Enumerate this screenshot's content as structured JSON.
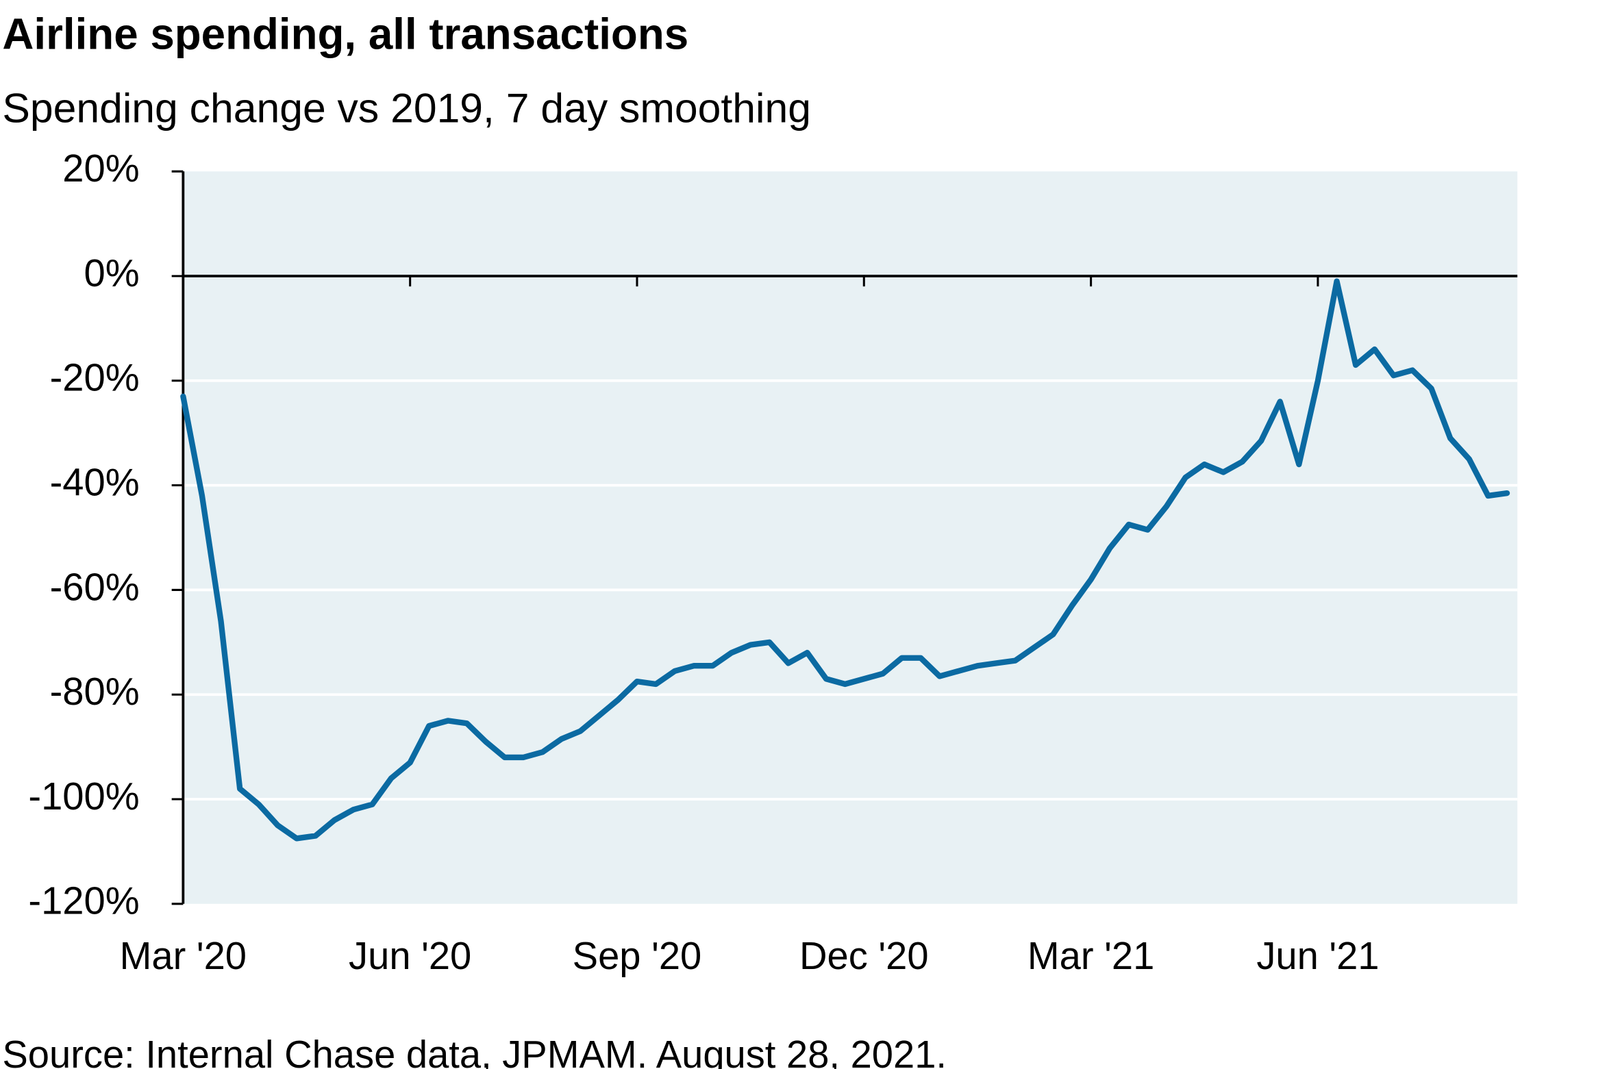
{
  "chart_data": {
    "type": "line",
    "title": "Airline spending, all transactions",
    "subtitle": "Spending change vs 2019, 7 day smoothing",
    "source": "Source: Internal Chase data, JPMAM. August 28, 2021.",
    "categories": [
      "Mar '20",
      null,
      null,
      null,
      null,
      null,
      null,
      null,
      null,
      null,
      null,
      null,
      "Jun '20",
      null,
      null,
      null,
      null,
      null,
      null,
      null,
      null,
      null,
      null,
      null,
      "Sep '20",
      null,
      null,
      null,
      null,
      null,
      null,
      null,
      null,
      null,
      null,
      null,
      "Dec '20",
      null,
      null,
      null,
      null,
      null,
      null,
      null,
      null,
      null,
      null,
      null,
      "Mar '21",
      null,
      null,
      null,
      null,
      null,
      null,
      null,
      null,
      null,
      null,
      null,
      "Jun '21",
      null,
      null,
      null,
      null,
      null,
      null,
      null,
      null,
      null,
      null
    ],
    "series": [
      {
        "name": "Airline spending",
        "color": "#0b6aa2",
        "values": [
          -23,
          -42,
          -66,
          -98,
          -101,
          -105,
          -107.5,
          -107,
          -104,
          -102,
          -101,
          -96,
          -93,
          -86,
          -85,
          -85.5,
          -89,
          -92,
          -92,
          -91,
          -88.5,
          -87,
          -84,
          -81,
          -77.5,
          -78,
          -75.5,
          -74.5,
          -74.5,
          -72,
          -70.5,
          -70,
          -74,
          -72,
          -77,
          -78,
          -77,
          -76,
          -73,
          -73,
          -76.5,
          -75.5,
          -74.5,
          -74,
          -73.5,
          -71,
          -68.5,
          -63,
          -58,
          -52,
          -47.5,
          -48.5,
          -44,
          -38.5,
          -36,
          -37.5,
          -35.5,
          -31.5,
          -24,
          -36,
          -20,
          -1,
          -17,
          -14,
          -19,
          -18,
          -21.5,
          -31,
          -35,
          -42,
          -41.5
        ]
      }
    ],
    "ylim": [
      -120,
      20
    ],
    "yticks": [
      {
        "value": -120,
        "label": "-120%"
      },
      {
        "value": -100,
        "label": "-100%"
      },
      {
        "value": -80,
        "label": "-80%"
      },
      {
        "value": -60,
        "label": "-60%"
      },
      {
        "value": -40,
        "label": "-40%"
      },
      {
        "value": -20,
        "label": "-20%"
      },
      {
        "value": 0,
        "label": "0%"
      },
      {
        "value": 20,
        "label": "20%"
      }
    ],
    "grid": true
  }
}
